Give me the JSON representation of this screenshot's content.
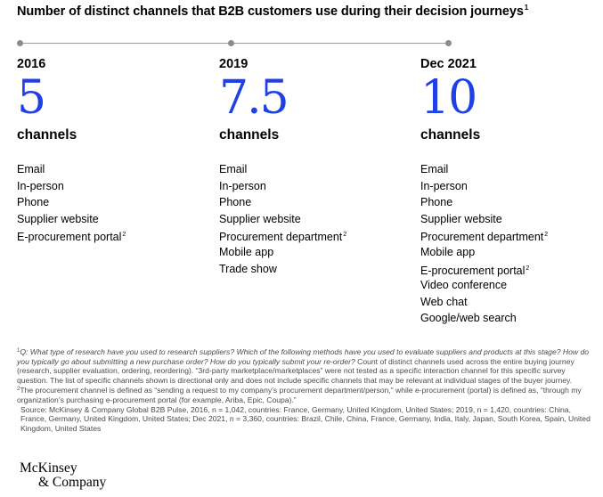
{
  "header": {
    "title": "Number of distinct channels that B2B customers use during their decision journeys",
    "title_note": "1"
  },
  "colors": {
    "accent": "#1f40e6",
    "timeline": "#8c8c8c"
  },
  "chart_data": {
    "type": "table",
    "title": "Number of distinct channels that B2B customers use during their decision journeys",
    "unit": "channels",
    "periods": [
      {
        "label": "2016",
        "value": "5",
        "unit": "channels",
        "channels": [
          "Email",
          "In-person",
          "Phone",
          "Supplier website",
          "E-procurement portal"
        ],
        "notes": [
          "",
          "",
          "",
          "",
          "2"
        ]
      },
      {
        "label": "2019",
        "value": "7.5",
        "unit": "channels",
        "channels": [
          "Email",
          "In-person",
          "Phone",
          "Supplier website",
          "Procurement department",
          "Mobile app",
          "Trade show"
        ],
        "notes": [
          "",
          "",
          "",
          "",
          "2",
          "",
          ""
        ]
      },
      {
        "label": "Dec 2021",
        "value": "10",
        "unit": "channels",
        "channels": [
          "Email",
          "In-person",
          "Phone",
          "Supplier website",
          "Procurement department",
          "Mobile app",
          "E-procurement portal",
          "Video conference",
          "Web chat",
          "Google/web search"
        ],
        "notes": [
          "",
          "",
          "",
          "",
          "2",
          "",
          "2",
          "",
          "",
          ""
        ]
      }
    ]
  },
  "footnotes": {
    "note1_marker": "1",
    "note1_question": "Q: What type of research have you used to research suppliers? Which of the following methods have you used to evaluate suppliers and products at this stage? How do you typically go about submitting a new purchase order? How do you typically submit your re-order?",
    "note1_text": " Count of distinct channels used across the entire buying journey (research, supplier evaluation, ordering, reordering). “3rd-party marketplace/marketplaces” were not tested as a specific interaction channel for this specific survey question. The list of specific channels shown is directional only and does not include specific channels that may be relevant at individual stages of the buyer journey.",
    "note2_marker": "2",
    "note2_text": "The procurement channel is defined as “sending a request to my company’s procurement department/person,” while e-procurement (portal) is defined as, “through my organization’s purchasing e-procurement portal (for example, Ariba, Epic, Coupa).”",
    "source": "Source: McKinsey & Company Global B2B Pulse, 2016, n = 1,042, countries: France, Germany, United Kingdom, United States; 2019, n = 1,420, countries: China, France, Germany, United Kingdom, United States; Dec 2021, n = 3,360, countries: Brazil, Chile, China, France, Germany, India, Italy, Japan, South Korea, Spain, United Kingdom, United States"
  },
  "brand": {
    "line1": "McKinsey",
    "line2": "& Company"
  }
}
